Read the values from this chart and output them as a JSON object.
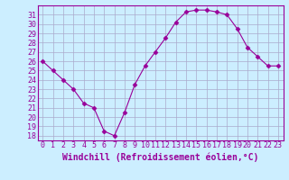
{
  "x": [
    0,
    1,
    2,
    3,
    4,
    5,
    6,
    7,
    8,
    9,
    10,
    11,
    12,
    13,
    14,
    15,
    16,
    17,
    18,
    19,
    20,
    21,
    22,
    23
  ],
  "y": [
    26,
    25,
    24,
    23,
    21.5,
    21,
    18.5,
    18,
    20.5,
    23.5,
    25.5,
    27,
    28.5,
    30.2,
    31.3,
    31.5,
    31.5,
    31.3,
    31.0,
    29.5,
    27.5,
    26.5,
    25.5,
    25.5
  ],
  "line_color": "#990099",
  "marker": "D",
  "marker_size": 2.5,
  "bg_color": "#cceeff",
  "grid_color": "#aaaacc",
  "xlabel": "Windchill (Refroidissement éolien,°C)",
  "ylim": [
    17.5,
    32
  ],
  "xlim": [
    -0.5,
    23.5
  ],
  "yticks": [
    18,
    19,
    20,
    21,
    22,
    23,
    24,
    25,
    26,
    27,
    28,
    29,
    30,
    31
  ],
  "xtick_labels": [
    "0",
    "1",
    "2",
    "3",
    "4",
    "5",
    "6",
    "7",
    "8",
    "9",
    "10",
    "11",
    "12",
    "13",
    "14",
    "15",
    "16",
    "17",
    "18",
    "19",
    "20",
    "21",
    "22",
    "23"
  ],
  "xlabel_fontsize": 7,
  "tick_fontsize": 6,
  "label_color": "#990099",
  "spine_color": "#990099"
}
